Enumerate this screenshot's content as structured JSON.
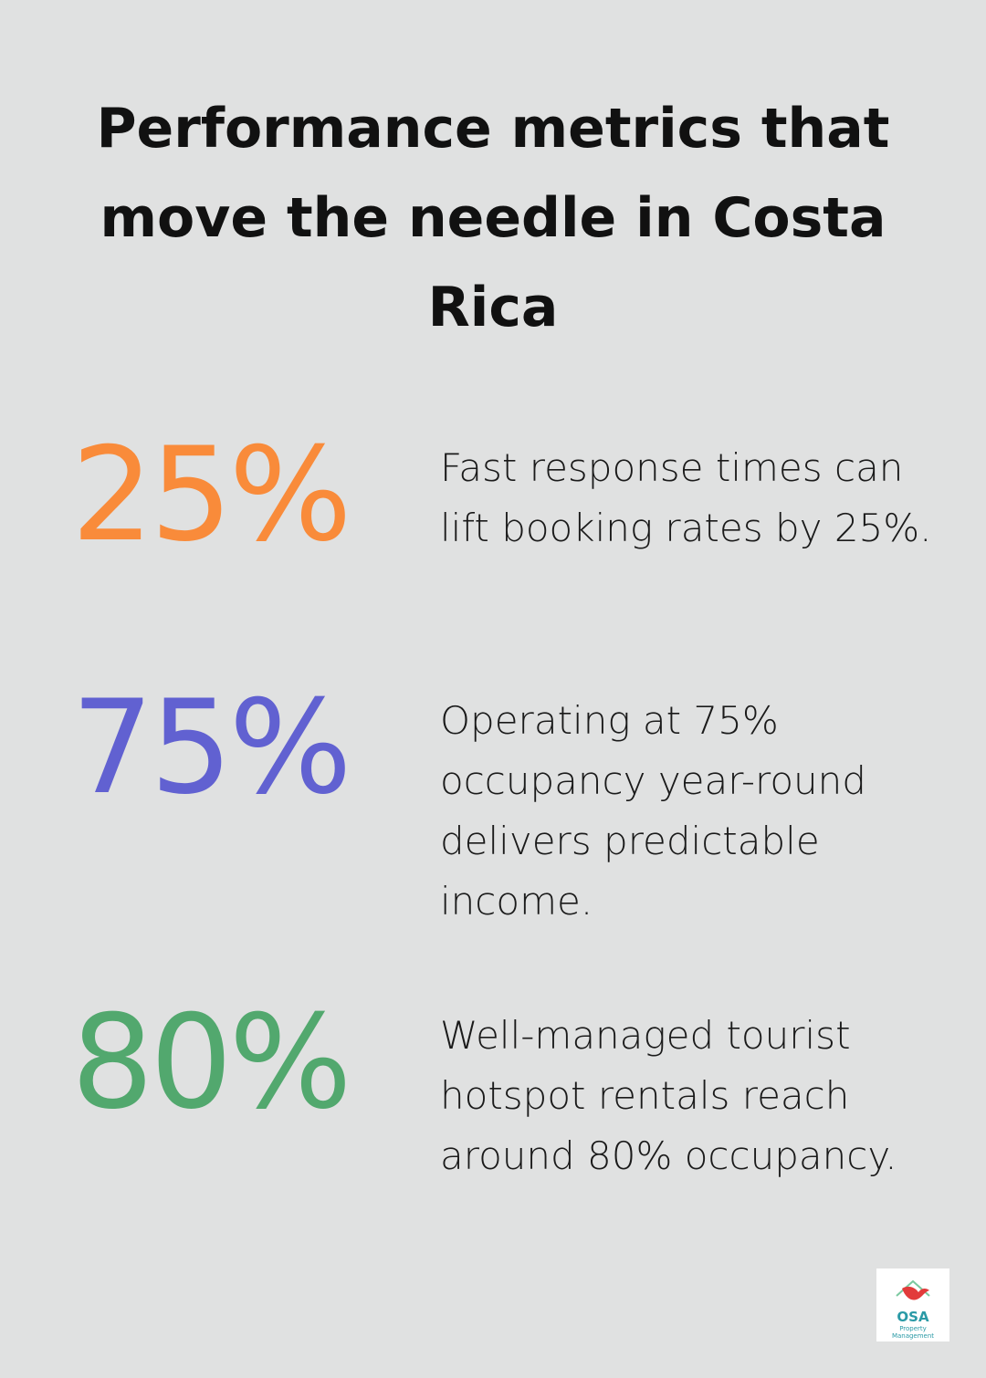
{
  "title": "Performance metrics that move the needle in Costa Rica",
  "stats": [
    {
      "value": "25%",
      "text": "Fast response times can lift booking rates by 25%.",
      "color": "#f98b3a"
    },
    {
      "value": "75%",
      "text": "Operating at 75% occupancy year-round delivers predictable income.",
      "color": "#6161d1"
    },
    {
      "value": "80%",
      "text": "Well-managed tourist hotspot rentals reach around 80% occupancy.",
      "color": "#52a86e"
    }
  ],
  "logo": {
    "name": "OSA",
    "tagline": "Property Management"
  }
}
